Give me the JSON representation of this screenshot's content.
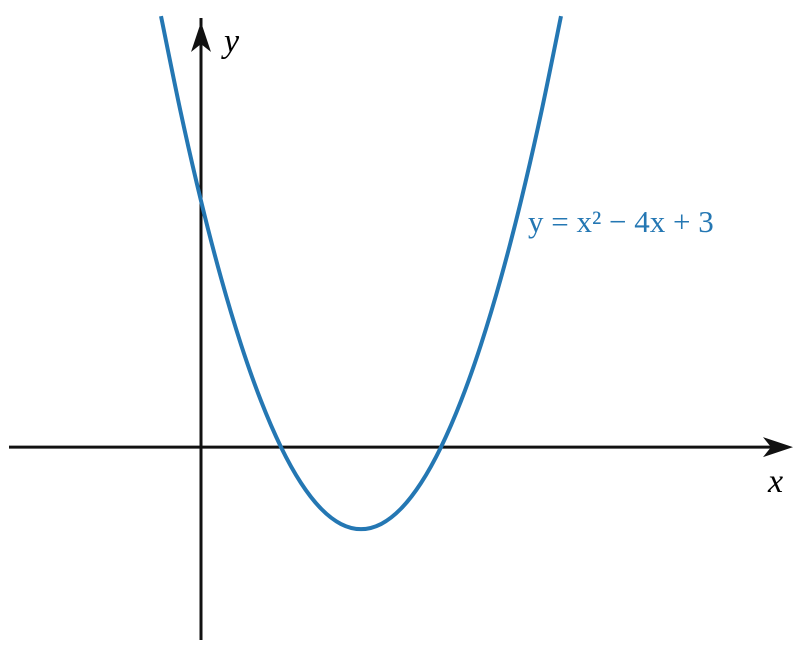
{
  "chart_data": {
    "type": "line",
    "x_label": "x",
    "y_label": "y",
    "annotation": "y = x² − 4x + 3",
    "x": [
      -0.5,
      -0.25,
      0,
      0.25,
      0.5,
      0.75,
      1,
      1.25,
      1.5,
      1.75,
      2,
      2.25,
      2.5,
      2.75,
      3,
      3.25,
      3.5,
      3.75,
      4,
      4.25,
      4.5
    ],
    "series": [
      {
        "name": "y = x² − 4x + 3",
        "color": "#2477b3",
        "values": [
          5.25,
          4.0625,
          3,
          2.0625,
          1.25,
          0.5625,
          0,
          -0.4375,
          -0.75,
          -0.9375,
          -1,
          -0.9375,
          -0.75,
          -0.4375,
          0,
          0.5625,
          1.25,
          2.0625,
          3,
          4.0625,
          5.25
        ]
      }
    ],
    "xlim": [
      -2.4,
      7.4
    ],
    "ylim": [
      -2.35,
      5.3
    ],
    "grid": false,
    "legend": false
  }
}
